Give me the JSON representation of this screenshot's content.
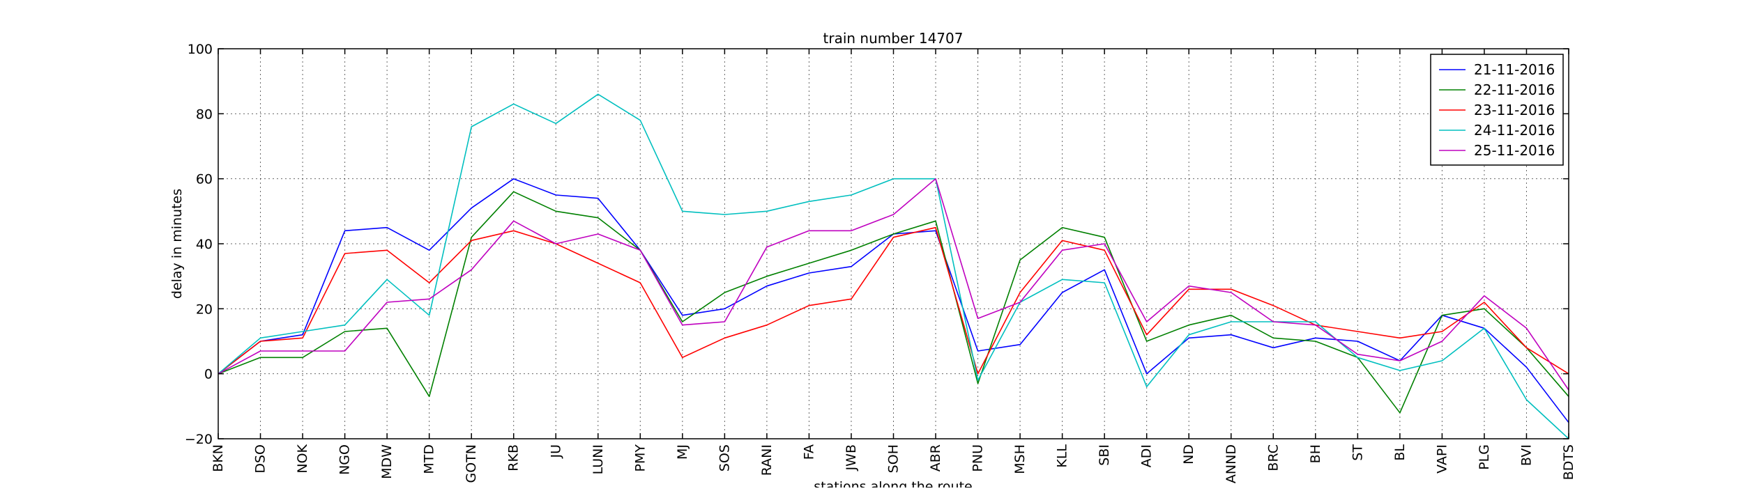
{
  "chart_data": {
    "type": "line",
    "title": "train number 14707",
    "xlabel": "stations along the route",
    "ylabel": "delay in minutes",
    "ylim": [
      -20,
      100
    ],
    "yticks": [
      -20,
      0,
      20,
      40,
      60,
      80,
      100
    ],
    "grid": true,
    "legend_position": "top-right",
    "categories": [
      "BKN",
      "DSO",
      "NOK",
      "NGO",
      "MDW",
      "MTD",
      "GOTN",
      "RKB",
      "JU",
      "LUNI",
      "PMY",
      "MJ",
      "SOS",
      "RANI",
      "FA",
      "JWB",
      "SOH",
      "ABR",
      "PNU",
      "MSH",
      "KLL",
      "SBI",
      "ADI",
      "ND",
      "ANND",
      "BRC",
      "BH",
      "ST",
      "BL",
      "VAPI",
      "PLG",
      "BVI",
      "BDTS"
    ],
    "series": [
      {
        "name": "21-11-2016",
        "color": "#0000ff",
        "values": [
          0,
          10,
          12,
          44,
          45,
          38,
          51,
          60,
          55,
          54,
          38,
          18,
          20,
          27,
          31,
          33,
          43,
          44,
          7,
          9,
          25,
          32,
          0,
          11,
          12,
          8,
          11,
          10,
          4,
          18,
          14,
          2,
          -15
        ]
      },
      {
        "name": "22-11-2016",
        "color": "#008000",
        "values": [
          0,
          5,
          5,
          13,
          14,
          -7,
          42,
          56,
          50,
          48,
          38,
          16,
          25,
          30,
          34,
          38,
          43,
          47,
          -3,
          35,
          45,
          42,
          10,
          15,
          18,
          11,
          10,
          5,
          -12,
          18,
          20,
          8,
          -7
        ]
      },
      {
        "name": "23-11-2016",
        "color": "#ff0000",
        "values": [
          0,
          10,
          11,
          37,
          38,
          28,
          41,
          44,
          40,
          34,
          28,
          5,
          11,
          15,
          21,
          23,
          42,
          45,
          0,
          25,
          41,
          38,
          12,
          26,
          26,
          21,
          15,
          13,
          11,
          13,
          22,
          8,
          0
        ]
      },
      {
        "name": "24-11-2016",
        "color": "#00bfbf",
        "values": [
          0,
          11,
          13,
          15,
          29,
          18,
          76,
          83,
          77,
          86,
          78,
          50,
          49,
          50,
          53,
          55,
          60,
          60,
          -2,
          22,
          29,
          28,
          -4,
          12,
          16,
          16,
          16,
          5,
          1,
          4,
          14,
          -8,
          -20
        ]
      },
      {
        "name": "25-11-2016",
        "color": "#bf00bf",
        "values": [
          0,
          7,
          7,
          7,
          22,
          23,
          32,
          47,
          40,
          43,
          38,
          15,
          16,
          39,
          44,
          44,
          49,
          60,
          17,
          22,
          38,
          40,
          16,
          27,
          25,
          16,
          15,
          6,
          4,
          10,
          24,
          14,
          -5
        ]
      }
    ]
  }
}
